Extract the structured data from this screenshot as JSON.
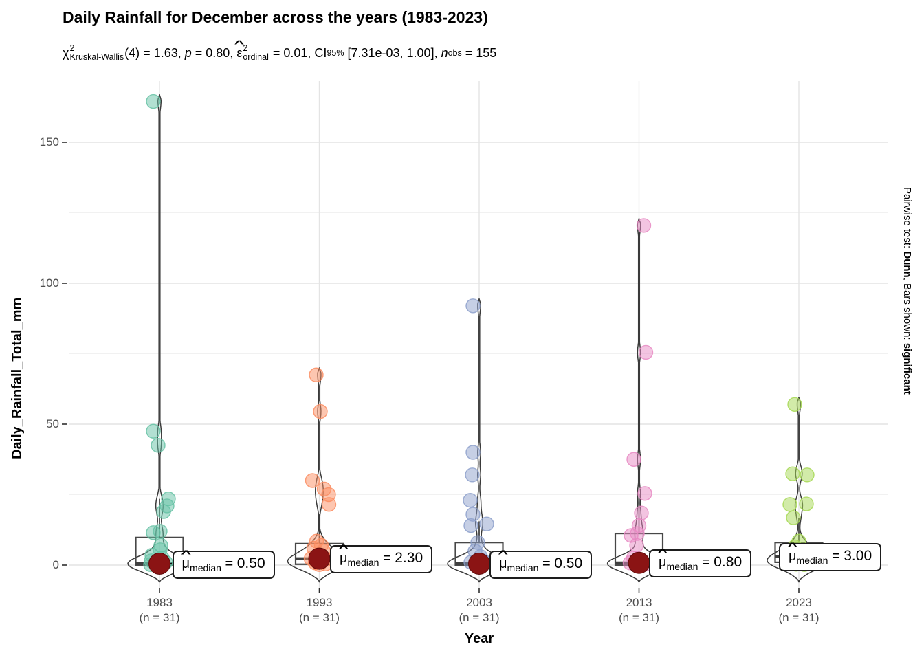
{
  "title": "Daily Rainfall for December across the years (1983-2023)",
  "subtitle": {
    "chi": "χ",
    "chi_sup": "2",
    "chi_sub": "Kruskal-Wallis",
    "part1": "(4) = 1.63, ",
    "p_sym": "p",
    "part2": " = 0.80, ",
    "eps": "ε",
    "eps_hat": "^",
    "eps_sup": "2",
    "eps_sub": "ordinal",
    "part3": " = 0.01, CI",
    "ci_sub": "95%",
    "part4": " [7.31e-03, 1.00], ",
    "n_sym": "n",
    "n_sub": "obs",
    "part5": " = 155"
  },
  "caption": {
    "part1": "Pairwise test: ",
    "bold1": "Dunn",
    "part2": ", Bars shown: ",
    "bold2": "significant"
  },
  "median_label_template": {
    "mu": "μ",
    "hat": "^",
    "sub": "median",
    "eq": " = "
  },
  "chart_data": {
    "type": "violin-box-jitter",
    "title": "Daily Rainfall for December across the years (1983-2023)",
    "stat_subtitle": "χ²Kruskal-Wallis(4) = 1.63, p = 0.80, ε̂²ordinal = 0.01, CI95% [7.31e-03, 1.00], nobs = 155",
    "caption_text": "Pairwise test: Dunn, Bars shown: significant",
    "xlabel": "Year",
    "ylabel": "Daily_Rainfall_Total_mm",
    "ylim": [
      -8,
      172
    ],
    "yticks": [
      {
        "v": 150,
        "label": "150"
      },
      {
        "v": 100,
        "label": "100"
      },
      {
        "v": 50,
        "label": "50"
      },
      {
        "v": 0,
        "label": "0"
      }
    ],
    "yminor": [
      125,
      75,
      25
    ],
    "grid": true,
    "legend": "none",
    "median_point_color": "#8B1414",
    "outline_color": "#3a3a3a",
    "groups": [
      {
        "label": "1983",
        "n_label": "(n = 31)",
        "n": 31,
        "color": "#66C2A5",
        "median": 0.5,
        "median_label": "0.50",
        "box": {
          "q1": 0,
          "median": 0.5,
          "q3": 9.8,
          "whisker_high": 23.5,
          "whisker_low": 0
        },
        "values": [
          164.5,
          47.5,
          42.5,
          23.5,
          21,
          19,
          12,
          11.5,
          7,
          5.4,
          3,
          2,
          1.5,
          1,
          0.8,
          0.5,
          0.5,
          0.4,
          0.3,
          0.2,
          0.2,
          0.1,
          0.1,
          0,
          0,
          0,
          0,
          0,
          0,
          0,
          0
        ],
        "points": [
          [
            -9,
            164.5
          ],
          [
            -9,
            47.5
          ],
          [
            -2,
            42.5
          ],
          [
            13,
            23.5
          ],
          [
            11,
            21
          ],
          [
            6,
            19
          ],
          [
            -9,
            11.5
          ],
          [
            1,
            12
          ],
          [
            2,
            7
          ],
          [
            1,
            5.4
          ],
          [
            -12,
            1.5
          ],
          [
            -6,
            0.8
          ],
          [
            6,
            0.5
          ],
          [
            -2,
            0.3
          ],
          [
            9,
            1
          ],
          [
            -13,
            0.2
          ],
          [
            4,
            2.5
          ],
          [
            -11,
            3.5
          ]
        ]
      },
      {
        "label": "1993",
        "n_label": "(n = 31)",
        "n": 31,
        "color": "#FC8D62",
        "median": 2.3,
        "median_label": "2.30",
        "box": {
          "q1": 0.3,
          "median": 2.3,
          "q3": 7.6,
          "whisker_high": 18,
          "whisker_low": 0
        },
        "values": [
          67.5,
          54.5,
          30,
          27,
          25,
          21.5,
          8.5,
          7,
          6,
          5,
          4.5,
          4,
          3.5,
          3,
          2.5,
          2.3,
          2,
          1.5,
          1.2,
          1,
          0.8,
          0.5,
          0.5,
          0.4,
          0.3,
          0.2,
          0.2,
          0.1,
          0,
          0,
          0
        ],
        "points": [
          [
            -4.5,
            67.5
          ],
          [
            1.5,
            54.5
          ],
          [
            -10,
            30
          ],
          [
            7,
            27
          ],
          [
            13.5,
            25
          ],
          [
            14,
            21.5
          ],
          [
            -4,
            8.5
          ],
          [
            3,
            7
          ],
          [
            -8,
            6
          ],
          [
            6,
            5
          ],
          [
            -2,
            3.5
          ],
          [
            -12,
            2.3
          ],
          [
            2,
            1.5
          ],
          [
            -6,
            0.8
          ],
          [
            9,
            0.4
          ],
          [
            0,
            0.2
          ],
          [
            -3,
            1
          ],
          [
            10,
            2
          ]
        ]
      },
      {
        "label": "2003",
        "n_label": "(n = 31)",
        "n": 31,
        "color": "#8DA0CB",
        "median": 0.5,
        "median_label": "0.50",
        "box": {
          "q1": 0,
          "median": 0.5,
          "q3": 8,
          "whisker_high": 15.5,
          "whisker_low": 0
        },
        "values": [
          92,
          40,
          32,
          23,
          18,
          14.6,
          14,
          8,
          5,
          3,
          1.5,
          1.2,
          1,
          0.8,
          0.6,
          0.5,
          0.5,
          0.4,
          0.3,
          0.2,
          0.2,
          0.1,
          0.1,
          0,
          0,
          0,
          0,
          0,
          0,
          0,
          0
        ],
        "points": [
          [
            -9,
            92
          ],
          [
            -9,
            40
          ],
          [
            -10,
            32
          ],
          [
            -13,
            23
          ],
          [
            -9,
            18
          ],
          [
            -12,
            14
          ],
          [
            11,
            14.6
          ],
          [
            -2,
            8
          ],
          [
            -6,
            5
          ],
          [
            2,
            3
          ],
          [
            6,
            1.5
          ],
          [
            -4,
            0.5
          ],
          [
            8,
            0.8
          ],
          [
            -12,
            1
          ],
          [
            0,
            0.2
          ],
          [
            4,
            0.1
          ]
        ]
      },
      {
        "label": "2013",
        "n_label": "(n = 31)",
        "n": 31,
        "color": "#E78AC3",
        "median": 0.8,
        "median_label": "0.80",
        "box": {
          "q1": 0,
          "median": 0.8,
          "q3": 11.2,
          "whisker_high": 25.4,
          "whisker_low": 0
        },
        "values": [
          120.5,
          75.5,
          37.5,
          25.4,
          18.5,
          14,
          11.2,
          10.5,
          7,
          2.5,
          2,
          1.5,
          1.2,
          1,
          0.8,
          0.8,
          0.6,
          0.5,
          0.4,
          0.3,
          0.2,
          0.2,
          0.1,
          0,
          0,
          0,
          0,
          0,
          0,
          0,
          0
        ],
        "points": [
          [
            7,
            120.5
          ],
          [
            10,
            75.5
          ],
          [
            -7.5,
            37.5
          ],
          [
            8.5,
            25.4
          ],
          [
            3.5,
            18.5
          ],
          [
            0,
            14
          ],
          [
            -2.5,
            11.2
          ],
          [
            -11.5,
            10.5
          ],
          [
            -3.5,
            7
          ],
          [
            -8,
            2.5
          ],
          [
            4,
            1.5
          ],
          [
            -13,
            0.8
          ],
          [
            0,
            0.5
          ],
          [
            9,
            0.3
          ],
          [
            -5,
            0.2
          ],
          [
            2,
            1
          ]
        ]
      },
      {
        "label": "2023",
        "n_label": "(n = 31)",
        "n": 31,
        "color": "#A6D854",
        "median": 3.0,
        "median_label": "3.00",
        "box": {
          "q1": 1,
          "median": 3.0,
          "q3": 8,
          "whisker_high": 16.8,
          "whisker_low": 0
        },
        "values": [
          57,
          33,
          32,
          22,
          21.5,
          17,
          8.5,
          7,
          6.5,
          5,
          4.5,
          4,
          3.5,
          3.2,
          3,
          3,
          2.5,
          2,
          1.8,
          1.5,
          1.2,
          1,
          0.8,
          0.5,
          0.4,
          0.3,
          0.2,
          0.1,
          0,
          0,
          0
        ],
        "points": [
          [
            -6,
            57
          ],
          [
            -9,
            32.4
          ],
          [
            12,
            32
          ],
          [
            -13,
            21.5
          ],
          [
            11,
            21.7
          ],
          [
            -8,
            16.8
          ],
          [
            0,
            8.5
          ],
          [
            -6,
            6.5
          ],
          [
            4,
            5
          ],
          [
            -2,
            3
          ],
          [
            6,
            2
          ],
          [
            -10,
            1
          ],
          [
            2,
            0.5
          ],
          [
            -4,
            0.3
          ],
          [
            8,
            0.2
          ],
          [
            0,
            1.5
          ]
        ]
      }
    ]
  },
  "x_axis": {
    "title": "Year"
  },
  "y_axis": {
    "title": "Daily_Rainfall_Total_mm"
  }
}
